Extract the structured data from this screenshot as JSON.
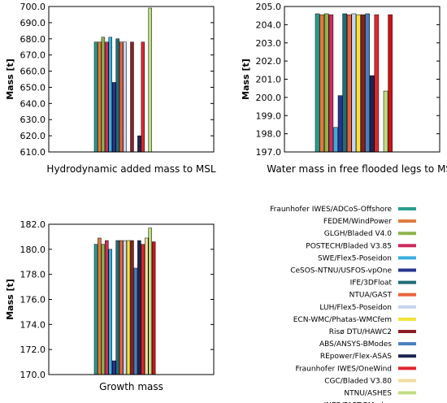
{
  "series": [
    {
      "name": "Fraunhofer IWES/ADCoS-Offshore",
      "color": "#2a9d8f"
    },
    {
      "name": "FEDEM/WindPower",
      "color": "#e07a3a"
    },
    {
      "name": "GLGH/Bladed V4.0",
      "color": "#8fb34a"
    },
    {
      "name": "POSTECH/Bladed V3.85",
      "color": "#cc2a5c"
    },
    {
      "name": "SWE/Flex5-Poseidon",
      "color": "#3aaee0"
    },
    {
      "name": "CeSOS-NTNU/USFOS-vpOne",
      "color": "#26358f"
    },
    {
      "name": "IFE/3DFloat",
      "color": "#1f6d78"
    },
    {
      "name": "NTUA/GAST",
      "color": "#e8623c"
    },
    {
      "name": "LUH/Flex5-Poseidon",
      "color": "#c8d4f0"
    },
    {
      "name": "ECN-WMC/Phatas-WMCfem",
      "color": "#f2e33a"
    },
    {
      "name": "Risø DTU/HAWC2",
      "color": "#8b1e22"
    },
    {
      "name": "ABS/ANSYS-BModes",
      "color": "#4a7fc0"
    },
    {
      "name": "REpower/Flex-ASAS",
      "color": "#1c2550"
    },
    {
      "name": "Fraunhofer IWES/OneWind",
      "color": "#e0262e"
    },
    {
      "name": "CGC/Bladed V3.80",
      "color": "#f0dca0"
    },
    {
      "name": "NTNU/ASHES",
      "color": "#bfdc80"
    },
    {
      "name": "INER/FAST-BModes",
      "color": "#cc1418"
    }
  ],
  "chart_data": [
    {
      "type": "bar",
      "title": "Hydrodynamic added mass to MSL",
      "ylabel": "Mass [t]",
      "ylim": [
        610,
        700
      ],
      "yticks": [
        "610.0",
        "620.0",
        "630.0",
        "640.0",
        "650.0",
        "660.0",
        "670.0",
        "680.0",
        "690.0",
        "700.0"
      ],
      "values": [
        678,
        678,
        681,
        678,
        681,
        653,
        680,
        678,
        678,
        null,
        678,
        null,
        620,
        678,
        null,
        699,
        null
      ]
    },
    {
      "type": "bar",
      "title": "Water mass in free flooded legs to MSL",
      "ylabel": "Mass [t]",
      "ylim": [
        197,
        205
      ],
      "yticks": [
        "197.0",
        "198.0",
        "199.0",
        "200.0",
        "201.0",
        "202.0",
        "203.0",
        "204.0",
        "205.0"
      ],
      "values": [
        204.6,
        204.55,
        204.6,
        204.55,
        198.35,
        200.1,
        204.6,
        204.55,
        204.6,
        204.55,
        204.55,
        204.6,
        201.2,
        204.55,
        null,
        200.35,
        204.55
      ]
    },
    {
      "type": "bar",
      "title": "Growth mass",
      "ylabel": "Mass [t]",
      "ylim": [
        170,
        182
      ],
      "yticks": [
        "170.0",
        "172.0",
        "174.0",
        "176.0",
        "178.0",
        "180.0",
        "182.0"
      ],
      "values": [
        180.4,
        180.9,
        180.4,
        180.7,
        180.0,
        171.1,
        180.7,
        180.7,
        180.7,
        180.7,
        180.7,
        178.5,
        180.7,
        180.4,
        180.9,
        181.7,
        180.6
      ]
    }
  ]
}
